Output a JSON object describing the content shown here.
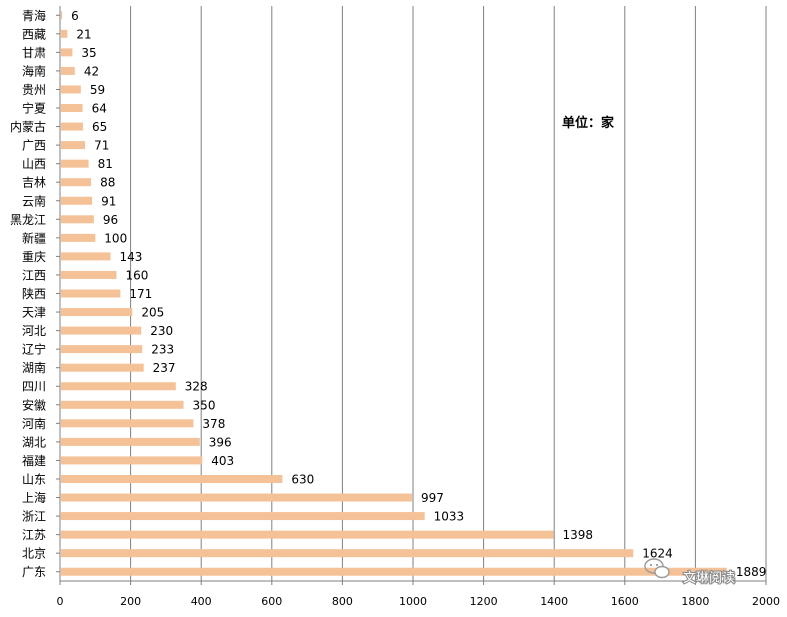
{
  "chart_data": {
    "type": "bar",
    "orientation": "horizontal",
    "categories": [
      "青海",
      "西藏",
      "甘肃",
      "海南",
      "贵州",
      "宁夏",
      "内蒙古",
      "广西",
      "山西",
      "吉林",
      "云南",
      "黑龙江",
      "新疆",
      "重庆",
      "江西",
      "陕西",
      "天津",
      "河北",
      "辽宁",
      "湖南",
      "四川",
      "安徽",
      "河南",
      "湖北",
      "福建",
      "山东",
      "上海",
      "浙江",
      "江苏",
      "北京",
      "广东"
    ],
    "values": [
      6,
      21,
      35,
      42,
      59,
      64,
      65,
      71,
      81,
      88,
      91,
      96,
      100,
      143,
      160,
      171,
      205,
      230,
      233,
      237,
      328,
      350,
      378,
      396,
      403,
      630,
      997,
      1033,
      1398,
      1624,
      1889
    ],
    "value_labels": [
      "6",
      "21",
      "35",
      "42",
      "59",
      "64",
      "65",
      "71",
      "81",
      "88",
      "91",
      "96",
      "100",
      "143",
      "160",
      "171",
      "205",
      "230",
      "233",
      "237",
      "328",
      "350",
      "378",
      "396",
      "403",
      "630",
      "997",
      "1033",
      "1398",
      "1624",
      "1889"
    ],
    "xlim": [
      0,
      2000
    ],
    "xticks": [
      "0",
      "200",
      "400",
      "600",
      "800",
      "1000",
      "1200",
      "1400",
      "1600",
      "1800",
      "2000"
    ],
    "grid": true,
    "title": "",
    "xlabel": "",
    "ylabel": "",
    "annotation": "单位：家",
    "bar_color": "#F5C197",
    "grid_color": "#808080"
  },
  "watermark": {
    "text": "文琳阅读",
    "icon": "wechat-icon"
  }
}
